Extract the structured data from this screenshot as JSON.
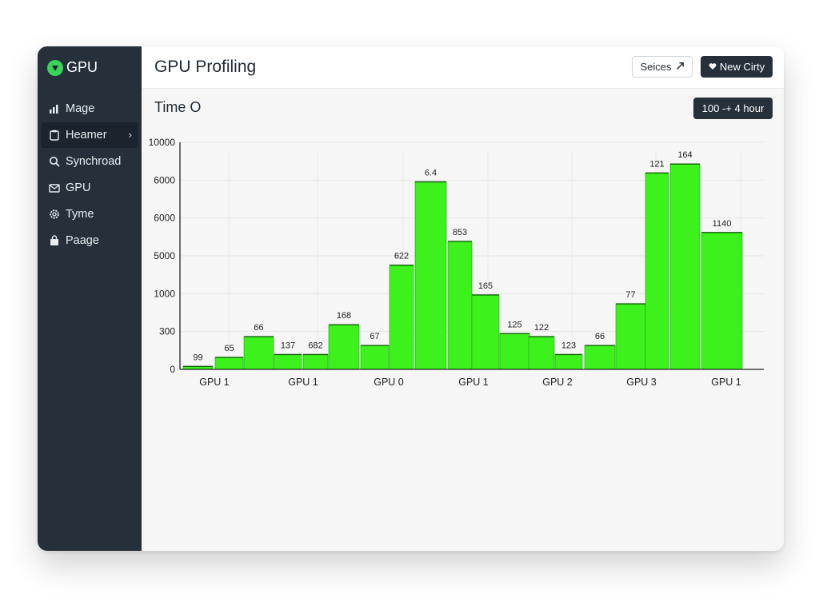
{
  "app": {
    "name": "GPU"
  },
  "sidebar": {
    "items": [
      {
        "label": "Mage",
        "icon": "bar-chart-icon",
        "active": false
      },
      {
        "label": "Heamer",
        "icon": "clipboard-icon",
        "active": true
      },
      {
        "label": "Synchroad",
        "icon": "search-icon",
        "active": false
      },
      {
        "label": "GPU",
        "icon": "mail-icon",
        "active": false
      },
      {
        "label": "Tyme",
        "icon": "gear-icon",
        "active": false
      },
      {
        "label": "Paage",
        "icon": "bag-icon",
        "active": false
      }
    ]
  },
  "header": {
    "title": "GPU Profiling",
    "secondary_button": "Seices",
    "primary_button": "New Cirty"
  },
  "section": {
    "title": "Time O",
    "range_button": "100 -+ 4 hour"
  },
  "colors": {
    "bar": "#3df21c",
    "sidebar": "#25303b",
    "accent": "#3bd35a"
  },
  "chart_data": {
    "type": "bar",
    "y_ticks": [
      "10000",
      "6000",
      "6000",
      "5000",
      "1000",
      "300",
      "0"
    ],
    "x_ticks": [
      "GPU 1",
      "GPU 1",
      "GPU 0",
      "GPU 1",
      "GPU 2",
      "GPU 3",
      "GPU 1"
    ],
    "values": [
      1,
      4,
      11,
      5,
      5,
      15,
      8,
      35,
      63,
      43,
      25,
      12,
      11,
      5,
      8,
      22,
      66,
      69,
      46
    ],
    "labels": [
      "99",
      "65",
      "66",
      "137",
      "682",
      "168",
      "67",
      "622",
      "6.4",
      "853",
      "165",
      "125",
      "122",
      "123",
      "66",
      "77",
      "121",
      "164",
      "1140"
    ],
    "grid": true,
    "legend": "none"
  }
}
